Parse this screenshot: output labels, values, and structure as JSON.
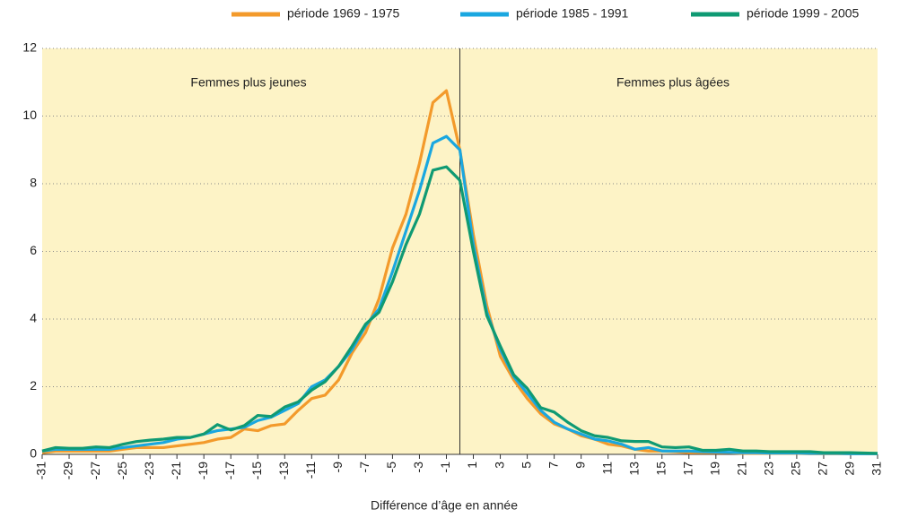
{
  "chart_data": {
    "type": "line",
    "xlabel": "Différence d’âge en année",
    "annotations": [
      "Femmes plus jeunes",
      "Femmes plus âgées"
    ],
    "vline": 0,
    "x": [
      -31,
      -30,
      -29,
      -28,
      -27,
      -26,
      -25,
      -24,
      -23,
      -22,
      -21,
      -20,
      -19,
      -18,
      -17,
      -16,
      -15,
      -14,
      -13,
      -12,
      -11,
      -10,
      -9,
      -8,
      -7,
      -6,
      -5,
      -4,
      -3,
      -2,
      -1,
      0,
      1,
      2,
      3,
      4,
      5,
      6,
      7,
      8,
      9,
      10,
      11,
      12,
      13,
      14,
      15,
      16,
      17,
      18,
      19,
      20,
      21,
      22,
      23,
      24,
      25,
      26,
      27,
      28,
      29,
      30,
      31
    ],
    "series": [
      {
        "name": "période 1969 - 1975",
        "color": "#f39a2b",
        "values": [
          0.05,
          0.1,
          0.1,
          0.1,
          0.1,
          0.1,
          0.15,
          0.2,
          0.2,
          0.2,
          0.25,
          0.3,
          0.35,
          0.45,
          0.5,
          0.75,
          0.7,
          0.85,
          0.9,
          1.3,
          1.65,
          1.75,
          2.2,
          3.0,
          3.6,
          4.6,
          6.1,
          7.1,
          8.6,
          10.4,
          10.75,
          9.0,
          6.5,
          4.4,
          2.9,
          2.2,
          1.65,
          1.2,
          0.9,
          0.75,
          0.55,
          0.45,
          0.3,
          0.25,
          0.15,
          0.1,
          0.1,
          0.08,
          0.05,
          0.05,
          0.05,
          0.05,
          0.03,
          0.03,
          0.03,
          0.03,
          0.03,
          0.02,
          0.02,
          0.02,
          0.02,
          0.02,
          0.02
        ]
      },
      {
        "name": "période 1985 - 1991",
        "color": "#1aa7e0",
        "values": [
          0.1,
          0.15,
          0.15,
          0.15,
          0.15,
          0.15,
          0.2,
          0.25,
          0.3,
          0.35,
          0.45,
          0.5,
          0.6,
          0.7,
          0.75,
          0.8,
          1.0,
          1.1,
          1.3,
          1.5,
          2.0,
          2.2,
          2.6,
          3.1,
          3.8,
          4.3,
          5.4,
          6.6,
          7.8,
          9.2,
          9.4,
          9.0,
          6.2,
          4.2,
          3.1,
          2.3,
          1.8,
          1.3,
          0.95,
          0.75,
          0.6,
          0.45,
          0.4,
          0.3,
          0.15,
          0.2,
          0.1,
          0.1,
          0.1,
          0.08,
          0.07,
          0.06,
          0.05,
          0.05,
          0.04,
          0.04,
          0.04,
          0.03,
          0.03,
          0.03,
          0.02,
          0.02,
          0.02
        ]
      },
      {
        "name": "période 1999 - 2005",
        "color": "#0f9a73",
        "values": [
          0.1,
          0.2,
          0.18,
          0.18,
          0.22,
          0.2,
          0.3,
          0.38,
          0.42,
          0.45,
          0.5,
          0.5,
          0.6,
          0.88,
          0.72,
          0.85,
          1.15,
          1.12,
          1.4,
          1.55,
          1.9,
          2.15,
          2.6,
          3.2,
          3.85,
          4.2,
          5.1,
          6.2,
          7.1,
          8.4,
          8.5,
          8.1,
          6.0,
          4.1,
          3.2,
          2.35,
          1.95,
          1.38,
          1.25,
          0.95,
          0.7,
          0.55,
          0.5,
          0.4,
          0.38,
          0.38,
          0.22,
          0.2,
          0.22,
          0.12,
          0.12,
          0.15,
          0.1,
          0.1,
          0.08,
          0.08,
          0.08,
          0.08,
          0.05,
          0.05,
          0.05,
          0.04,
          0.03
        ]
      }
    ],
    "xlim": [
      -31,
      31
    ],
    "xticks": [
      -31,
      -29,
      -27,
      -25,
      -23,
      -21,
      -19,
      -17,
      -15,
      -13,
      -11,
      -9,
      -7,
      -5,
      -3,
      -1,
      1,
      3,
      5,
      7,
      9,
      11,
      13,
      15,
      17,
      19,
      21,
      23,
      25,
      27,
      29,
      31
    ],
    "ylim": [
      0,
      12
    ],
    "yticks": [
      0,
      2,
      4,
      6,
      8,
      10,
      12
    ],
    "grid": true
  }
}
